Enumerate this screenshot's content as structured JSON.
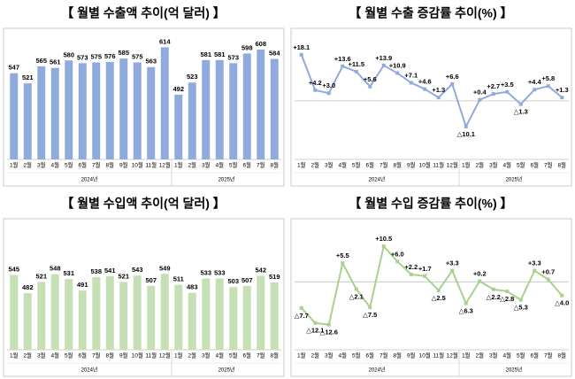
{
  "chart_data": [
    {
      "type": "bar",
      "title": "【 월별 수출액 추이(억 달러) 】",
      "categories": [
        "1월",
        "2월",
        "3월",
        "4월",
        "5월",
        "6월",
        "7월",
        "8월",
        "9월",
        "10월",
        "11월",
        "12월",
        "1월",
        "2월",
        "3월",
        "4월",
        "5월",
        "6월",
        "7월",
        "8월"
      ],
      "x_groups": [
        {
          "label": "2024년",
          "count": 12
        },
        {
          "label": "2025년",
          "count": 8
        }
      ],
      "values": [
        547,
        521,
        565,
        561,
        580,
        573,
        575,
        576,
        585,
        575,
        563,
        614,
        492,
        523,
        581,
        581,
        573,
        598,
        608,
        584
      ],
      "color": "#8faadc",
      "ylim": [
        325,
        640
      ]
    },
    {
      "type": "line",
      "title": "【 월별 수출 증감률 추이(%) 】",
      "categories": [
        "1월",
        "2월",
        "3월",
        "4월",
        "5월",
        "6월",
        "7월",
        "8월",
        "9월",
        "10월",
        "11월",
        "12월",
        "1월",
        "2월",
        "3월",
        "4월",
        "5월",
        "6월",
        "7월",
        "8월"
      ],
      "x_groups": [
        {
          "label": "2024년",
          "count": 12
        },
        {
          "label": "2025년",
          "count": 8
        }
      ],
      "values": [
        18.1,
        4.2,
        3.0,
        13.6,
        11.5,
        5.6,
        13.9,
        10.9,
        7.1,
        4.6,
        1.3,
        6.6,
        -10.1,
        0.4,
        2.7,
        3.5,
        -1.3,
        4.4,
        5.8,
        1.3
      ],
      "value_labels": [
        "+18.1",
        "+4.2",
        "+3.0",
        "+13.6",
        "+11.5",
        "+5.6",
        "+13.9",
        "+10.9",
        "+7.1",
        "+4.6",
        "+1.3",
        "+6.6",
        "△10.1",
        "+0.4",
        "+2.7",
        "+3.5",
        "△1.3",
        "+4.4",
        "+5.8",
        "+1.3"
      ],
      "color": "#8faadc",
      "ylim": [
        -23,
        25
      ]
    },
    {
      "type": "bar",
      "title": "【 월별 수입액 추이(억 달러) 】",
      "categories": [
        "1월",
        "2월",
        "3월",
        "4월",
        "5월",
        "6월",
        "7월",
        "8월",
        "9월",
        "10월",
        "11월",
        "12월",
        "1월",
        "2월",
        "3월",
        "4월",
        "5월",
        "6월",
        "7월",
        "8월"
      ],
      "x_groups": [
        {
          "label": "2024년",
          "count": 12
        },
        {
          "label": "2025년",
          "count": 8
        }
      ],
      "values": [
        545,
        482,
        521,
        548,
        531,
        491,
        538,
        541,
        521,
        543,
        507,
        549,
        511,
        483,
        533,
        533,
        503,
        507,
        542,
        519
      ],
      "color": "#c5e0b4",
      "ylim": [
        285,
        710
      ]
    },
    {
      "type": "line",
      "title": "【 월별 수입 증감률 추이(%) 】",
      "categories": [
        "1월",
        "2월",
        "3월",
        "4월",
        "5월",
        "6월",
        "7월",
        "8월",
        "9월",
        "10월",
        "11월",
        "12월",
        "1월",
        "2월",
        "3월",
        "4월",
        "5월",
        "6월",
        "7월",
        "8월"
      ],
      "x_groups": [
        {
          "label": "2024년",
          "count": 12
        },
        {
          "label": "2025년",
          "count": 8
        }
      ],
      "values": [
        -7.7,
        -12.1,
        -12.6,
        5.5,
        -2.1,
        -7.5,
        10.5,
        6.0,
        2.2,
        1.7,
        -2.5,
        3.3,
        -6.3,
        0.2,
        -2.2,
        -2.8,
        -5.3,
        3.3,
        0.7,
        -4.0
      ],
      "value_labels": [
        "△7.7",
        "△12.1",
        "△12.6",
        "+5.5",
        "△2.1",
        "△7.5",
        "+10.5",
        "+6.0",
        "+2.2",
        "+1.7",
        "△2.5",
        "+3.3",
        "△6.3",
        "+0.2",
        "△2.2",
        "△2.8",
        "△5.3",
        "+3.3",
        "+0.7",
        "△4.0"
      ],
      "color": "#a9d18e",
      "ylim": [
        -20,
        16
      ]
    }
  ]
}
